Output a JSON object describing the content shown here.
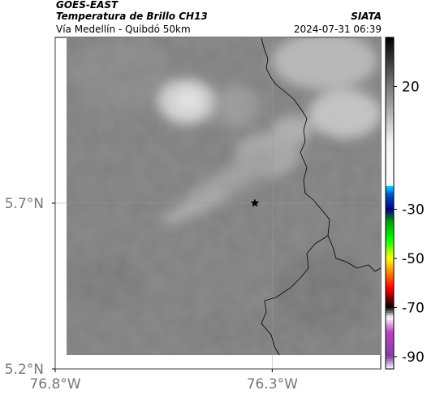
{
  "header": {
    "satellite": "GOES-EAST",
    "product": "Temperatura de Brillo CH13",
    "subtitle": "Vía Medellín - Quibdó 50km",
    "source": "SIATA",
    "timestamp": "2024-07-31 06:39"
  },
  "map": {
    "lon_range": [
      -76.8,
      -76.05
    ],
    "lat_range": [
      5.2,
      6.2
    ],
    "gridlines": true,
    "x_ticks": [
      {
        "value": -76.8,
        "label": "76.8°W"
      },
      {
        "value": -76.3,
        "label": "76.3°W"
      }
    ],
    "y_ticks": [
      {
        "value": 5.7,
        "label": "5.7°N"
      },
      {
        "value": 5.2,
        "label": "5.2°N"
      }
    ],
    "marker": {
      "symbol": "star",
      "lon": -76.34,
      "lat": 5.7
    },
    "border_color": "#000000"
  },
  "colorbar": {
    "orientation": "vertical",
    "placement": "right",
    "range": [
      -95,
      40
    ],
    "ticks": [
      {
        "value": 20,
        "label": "20"
      },
      {
        "value": -30,
        "label": "-30"
      },
      {
        "value": -50,
        "label": "-50"
      },
      {
        "value": -70,
        "label": "-70"
      },
      {
        "value": -90,
        "label": "-90"
      }
    ],
    "stops": [
      {
        "value": 40,
        "color": "#000000"
      },
      {
        "value": 20,
        "color": "#7a7a7a"
      },
      {
        "value": 0,
        "color": "#e6e6e6"
      },
      {
        "value": -3,
        "color": "#f5f5f5"
      },
      {
        "value": -20,
        "color": "#ffffff"
      },
      {
        "value": -21,
        "color": "#00c8ff"
      },
      {
        "value": -24,
        "color": "#0050c8"
      },
      {
        "value": -30,
        "color": "#000080"
      },
      {
        "value": -35,
        "color": "#00a000"
      },
      {
        "value": -42,
        "color": "#00ff00"
      },
      {
        "value": -50,
        "color": "#ffff00"
      },
      {
        "value": -56,
        "color": "#ff8000"
      },
      {
        "value": -62,
        "color": "#ff0000"
      },
      {
        "value": -66,
        "color": "#800000"
      },
      {
        "value": -70,
        "color": "#000000"
      },
      {
        "value": -74,
        "color": "#ffffff"
      },
      {
        "value": -80,
        "color": "#c040c0"
      },
      {
        "value": -90,
        "color": "#8040a0"
      },
      {
        "value": -95,
        "color": "#ffffff"
      }
    ]
  }
}
